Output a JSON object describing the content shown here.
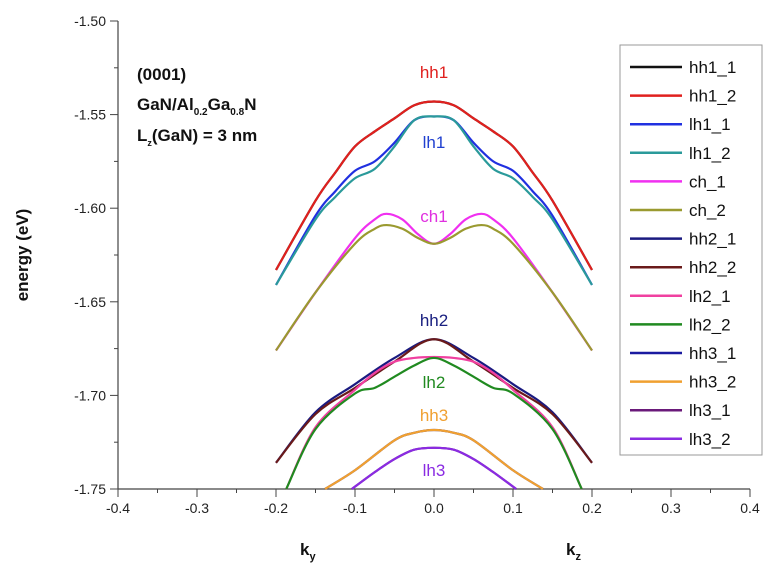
{
  "chart_data": {
    "type": "line",
    "ylabel": "energy (eV)",
    "xlabel_left": "k_y",
    "xlabel_right": "k_z",
    "xlim": [
      -0.4,
      0.4
    ],
    "ylim": [
      -1.75,
      -1.5
    ],
    "xticks": [
      "-0.4",
      "-0.3",
      "-0.2",
      "-0.1",
      "0.0",
      "0.1",
      "0.2",
      "0.3",
      "0.4"
    ],
    "yticks": [
      "-1.50",
      "-1.55",
      "-1.60",
      "-1.65",
      "-1.70",
      "-1.75"
    ],
    "grid": false,
    "legend_position": "right",
    "annotation": {
      "line1": "(0001)",
      "line2_a": "GaN/Al",
      "line2_sub1": "0.2",
      "line2_b": "Ga",
      "line2_sub2": "0.8",
      "line2_c": "N",
      "line3_a": "L",
      "line3_sub": "z",
      "line3_b": "(GaN) = 3 nm"
    },
    "band_labels": [
      {
        "text": "hh1",
        "color": "#e0201e"
      },
      {
        "text": "lh1",
        "color": "#2040d0"
      },
      {
        "text": "ch1",
        "color": "#e030e0"
      },
      {
        "text": "hh2",
        "color": "#1a2080"
      },
      {
        "text": "lh2",
        "color": "#208a20"
      },
      {
        "text": "hh3",
        "color": "#f0a030"
      },
      {
        "text": "lh3",
        "color": "#8a2be2"
      }
    ],
    "series": [
      {
        "name": "hh1_1",
        "color": "#111111",
        "x": [
          -0.2,
          -0.15,
          -0.125,
          -0.1,
          -0.075,
          -0.05,
          -0.025,
          0,
          0.025,
          0.05,
          0.075,
          0.1,
          0.125,
          0.15,
          0.2
        ],
        "y": [
          -1.633,
          -1.596,
          -1.581,
          -1.567,
          -1.559,
          -1.552,
          -1.545,
          -1.543,
          -1.545,
          -1.552,
          -1.559,
          -1.567,
          -1.581,
          -1.596,
          -1.633
        ]
      },
      {
        "name": "lh1_1",
        "color": "#2030e0",
        "x": [
          -0.2,
          -0.15,
          -0.125,
          -0.1,
          -0.075,
          -0.05,
          -0.025,
          0,
          0.025,
          0.05,
          0.075,
          0.1,
          0.125,
          0.15,
          0.2
        ],
        "y": [
          -1.641,
          -1.604,
          -1.591,
          -1.58,
          -1.575,
          -1.565,
          -1.553,
          -1.551,
          -1.553,
          -1.565,
          -1.575,
          -1.58,
          -1.591,
          -1.604,
          -1.641
        ]
      },
      {
        "name": "lh1_2",
        "color": "#2a9a9a",
        "x": [
          -0.2,
          -0.15,
          -0.125,
          -0.1,
          -0.075,
          -0.05,
          -0.025,
          0,
          0.025,
          0.05,
          0.075,
          0.1,
          0.125,
          0.15,
          0.2
        ],
        "y": [
          -1.641,
          -1.606,
          -1.594,
          -1.584,
          -1.579,
          -1.567,
          -1.553,
          -1.551,
          -1.553,
          -1.567,
          -1.579,
          -1.584,
          -1.594,
          -1.606,
          -1.641
        ]
      },
      {
        "name": "hh1_2",
        "color": "#e0201e",
        "x": [
          -0.2,
          -0.15,
          -0.125,
          -0.1,
          -0.075,
          -0.05,
          -0.025,
          0,
          0.025,
          0.05,
          0.075,
          0.1,
          0.125,
          0.15,
          0.2
        ],
        "y": [
          -1.633,
          -1.596,
          -1.581,
          -1.567,
          -1.559,
          -1.552,
          -1.545,
          -1.543,
          -1.545,
          -1.552,
          -1.559,
          -1.567,
          -1.581,
          -1.596,
          -1.633
        ]
      },
      {
        "name": "ch_1",
        "color": "#f030f0",
        "x": [
          -0.2,
          -0.15,
          -0.1,
          -0.075,
          -0.06,
          -0.04,
          -0.02,
          0,
          0.02,
          0.04,
          0.06,
          0.075,
          0.1,
          0.15,
          0.2
        ],
        "y": [
          -1.676,
          -1.645,
          -1.616,
          -1.606,
          -1.603,
          -1.606,
          -1.614,
          -1.619,
          -1.614,
          -1.606,
          -1.603,
          -1.606,
          -1.616,
          -1.645,
          -1.676
        ]
      },
      {
        "name": "ch_2",
        "color": "#9a9a30",
        "x": [
          -0.2,
          -0.15,
          -0.1,
          -0.075,
          -0.06,
          -0.04,
          -0.02,
          0,
          0.02,
          0.04,
          0.06,
          0.075,
          0.1,
          0.15,
          0.2
        ],
        "y": [
          -1.676,
          -1.645,
          -1.619,
          -1.611,
          -1.609,
          -1.611,
          -1.616,
          -1.619,
          -1.616,
          -1.611,
          -1.609,
          -1.611,
          -1.619,
          -1.645,
          -1.676
        ]
      },
      {
        "name": "hh2_1",
        "color": "#1a1a80",
        "x": [
          -0.2,
          -0.15,
          -0.1,
          -0.05,
          0,
          0.05,
          0.1,
          0.15,
          0.2
        ],
        "y": [
          -1.736,
          -1.709,
          -1.694,
          -1.68,
          -1.67,
          -1.68,
          -1.694,
          -1.709,
          -1.736
        ]
      },
      {
        "name": "hh2_2",
        "color": "#6a1a1a",
        "x": [
          -0.2,
          -0.15,
          -0.1,
          -0.05,
          0,
          0.05,
          0.1,
          0.15,
          0.2
        ],
        "y": [
          -1.736,
          -1.71,
          -1.696,
          -1.682,
          -1.67,
          -1.682,
          -1.696,
          -1.71,
          -1.736
        ]
      },
      {
        "name": "lh2_1",
        "color": "#f040a0",
        "x": [
          -0.187,
          -0.15,
          -0.1,
          -0.075,
          -0.05,
          -0.025,
          0,
          0.025,
          0.05,
          0.075,
          0.1,
          0.15,
          0.187
        ],
        "y": [
          -1.75,
          -1.717,
          -1.697,
          -1.688,
          -1.682,
          -1.68,
          -1.6795,
          -1.68,
          -1.682,
          -1.688,
          -1.697,
          -1.717,
          -1.75
        ]
      },
      {
        "name": "lh2_2",
        "color": "#208a20",
        "x": [
          -0.187,
          -0.15,
          -0.1,
          -0.075,
          -0.05,
          -0.025,
          0,
          0.025,
          0.05,
          0.075,
          0.1,
          0.15,
          0.187
        ],
        "y": [
          -1.75,
          -1.718,
          -1.699,
          -1.696,
          -1.69,
          -1.684,
          -1.68,
          -1.684,
          -1.69,
          -1.696,
          -1.699,
          -1.718,
          -1.75
        ]
      },
      {
        "name": "hh3_1",
        "color": "#1a1aa0",
        "x": [
          -0.138,
          -0.1,
          -0.05,
          -0.025,
          0,
          0.025,
          0.05,
          0.1,
          0.138
        ],
        "y": [
          -1.75,
          -1.74,
          -1.724,
          -1.72,
          -1.7185,
          -1.72,
          -1.724,
          -1.74,
          -1.75
        ]
      },
      {
        "name": "hh3_2",
        "color": "#f0a030",
        "x": [
          -0.138,
          -0.1,
          -0.05,
          -0.025,
          0,
          0.025,
          0.05,
          0.1,
          0.138
        ],
        "y": [
          -1.75,
          -1.74,
          -1.724,
          -1.72,
          -1.7185,
          -1.72,
          -1.724,
          -1.74,
          -1.75
        ]
      },
      {
        "name": "lh3_1",
        "color": "#6a1a7a",
        "x": [
          -0.104,
          -0.075,
          -0.05,
          -0.025,
          0,
          0.025,
          0.05,
          0.075,
          0.104
        ],
        "y": [
          -1.75,
          -1.741,
          -1.734,
          -1.729,
          -1.728,
          -1.729,
          -1.734,
          -1.741,
          -1.75
        ]
      },
      {
        "name": "lh3_2",
        "color": "#8a2be2",
        "x": [
          -0.104,
          -0.075,
          -0.05,
          -0.025,
          0,
          0.025,
          0.05,
          0.075,
          0.104
        ],
        "y": [
          -1.75,
          -1.741,
          -1.734,
          -1.729,
          -1.728,
          -1.729,
          -1.734,
          -1.741,
          -1.75
        ]
      }
    ],
    "legend_order": [
      "hh1_1",
      "hh1_2",
      "lh1_1",
      "lh1_2",
      "ch_1",
      "ch_2",
      "hh2_1",
      "hh2_2",
      "lh2_1",
      "lh2_2",
      "hh3_1",
      "hh3_2",
      "lh3_1",
      "lh3_2"
    ]
  }
}
